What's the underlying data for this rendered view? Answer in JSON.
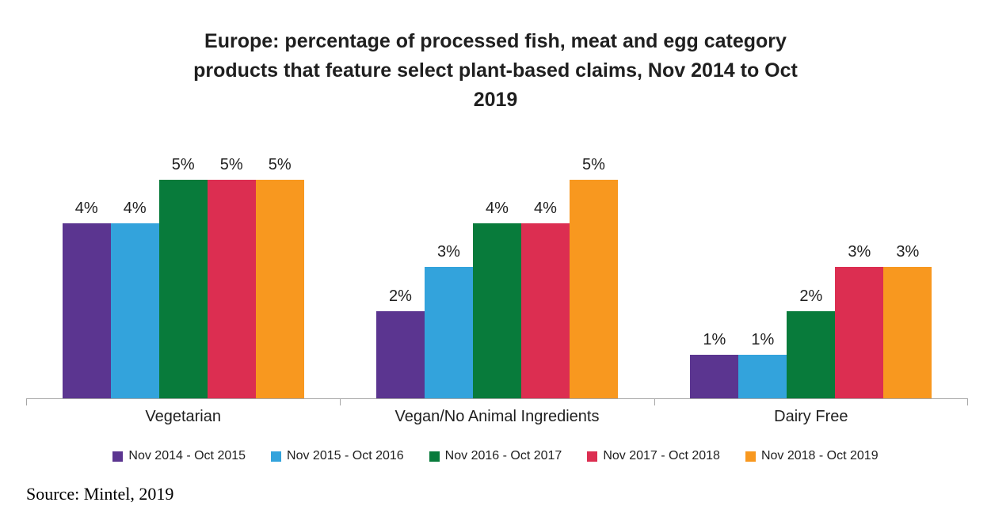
{
  "title_lines": [
    "Europe: percentage of processed fish, meat and egg category",
    "products that feature select plant-based claims, Nov 2014 to Oct",
    "2019"
  ],
  "source": "Source: Mintel, 2019",
  "chart_data": {
    "type": "bar",
    "title": "Europe: percentage of processed fish, meat and egg category products that feature select plant-based claims, Nov 2014 to Oct 2019",
    "categories": [
      "Vegetarian",
      "Vegan/No Animal Ingredients",
      "Dairy Free"
    ],
    "series": [
      {
        "name": "Nov 2014 - Oct 2015",
        "color": "#5B3590",
        "values": [
          4,
          2,
          1
        ]
      },
      {
        "name": "Nov 2015 - Oct 2016",
        "color": "#33A3DC",
        "values": [
          4,
          3,
          1
        ]
      },
      {
        "name": "Nov 2016 - Oct 2017",
        "color": "#087B3B",
        "values": [
          5,
          4,
          2
        ]
      },
      {
        "name": "Nov 2017 - Oct 2018",
        "color": "#DC2E51",
        "values": [
          5,
          4,
          3
        ]
      },
      {
        "name": "Nov 2018 - Oct 2019",
        "color": "#F8981F",
        "values": [
          5,
          5,
          3
        ]
      }
    ],
    "value_suffix": "%",
    "data_labels": true,
    "ylim": [
      0,
      6
    ],
    "grid": false,
    "y_axis_visible": false,
    "axis_color": "#A6A6A6",
    "legend_position": "bottom",
    "annotation": "Source: Mintel, 2019"
  }
}
